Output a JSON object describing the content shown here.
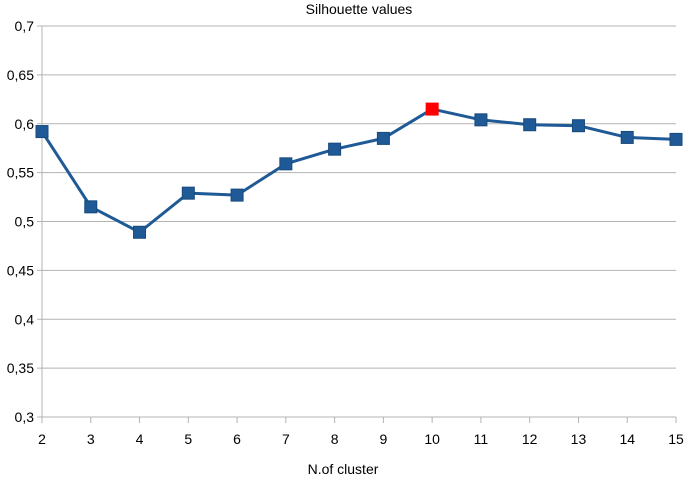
{
  "chart_data": {
    "type": "line",
    "title": "Silhouette values",
    "xlabel": "N.of cluster",
    "ylabel": "",
    "x": [
      2,
      3,
      4,
      5,
      6,
      7,
      8,
      9,
      10,
      11,
      12,
      13,
      14,
      15
    ],
    "x_tick_labels": [
      "2",
      "3",
      "4",
      "5",
      "6",
      "7",
      "8",
      "9",
      "10",
      "11",
      "12",
      "13",
      "14",
      "15"
    ],
    "series": [
      {
        "values": [
          0.592,
          0.515,
          0.489,
          0.529,
          0.527,
          0.559,
          0.574,
          0.585,
          0.615,
          0.604,
          0.599,
          0.598,
          0.586,
          0.584
        ],
        "color": "#1f5a96",
        "marker": "square",
        "highlight_index": 8,
        "highlight_color": "#ff0000"
      }
    ],
    "ylim": [
      0.3,
      0.7
    ],
    "y_ticks": [
      0.3,
      0.35,
      0.4,
      0.45,
      0.5,
      0.55,
      0.6,
      0.65,
      0.7
    ],
    "y_tick_labels": [
      "0,3",
      "0,35",
      "0,4",
      "0,45",
      "0,5",
      "0,55",
      "0,6",
      "0,65",
      "0,7"
    ],
    "grid": "horizontal",
    "legend": "none"
  }
}
